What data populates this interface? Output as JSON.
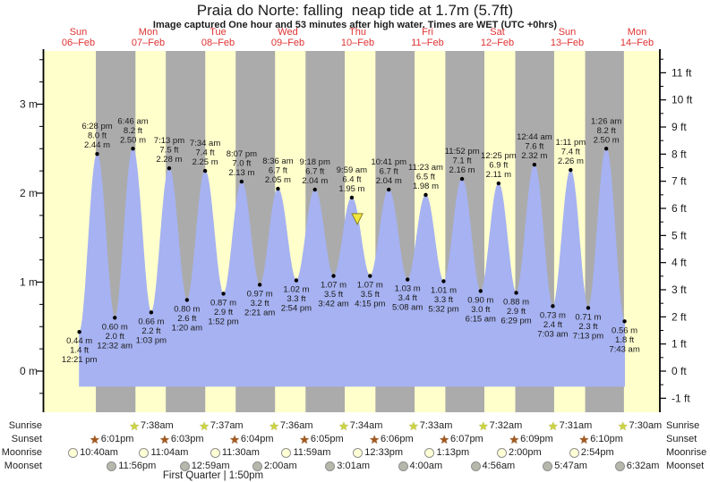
{
  "title": "Praia do Norte: falling  neap tide at 1.7m (5.7ft)",
  "subtitle": "Image captured One hour and 53 minutes after high water. Times are WET (UTC +0hrs)",
  "days": [
    {
      "name": "Sun",
      "date": "06–Feb"
    },
    {
      "name": "Mon",
      "date": "07–Feb"
    },
    {
      "name": "Tue",
      "date": "08–Feb"
    },
    {
      "name": "Wed",
      "date": "09–Feb"
    },
    {
      "name": "Thu",
      "date": "10–Feb"
    },
    {
      "name": "Fri",
      "date": "11–Feb"
    },
    {
      "name": "Sat",
      "date": "12–Feb"
    },
    {
      "name": "Sun",
      "date": "13–Feb"
    },
    {
      "name": "Mon",
      "date": "14–Feb"
    }
  ],
  "axis_left_labels": [
    "3 m",
    "2 m",
    "1 m",
    "0 m"
  ],
  "axis_right_labels": [
    "11 ft",
    "10 ft",
    "9 ft",
    "8 ft",
    "7 ft",
    "6 ft",
    "5 ft",
    "4 ft",
    "3 ft",
    "2 ft",
    "1 ft",
    "0 ft",
    "-1 ft"
  ],
  "colors": {
    "day_band": "#ffffcc",
    "night_band": "#ababab",
    "tide_fill": "#a6b2f1",
    "day_label_red": "#e03232",
    "marker_yellow": "#f2e73c",
    "marker_outline": "#8a8423",
    "sunrise_star": "#ccd43e",
    "sunset_star": "#a2591f",
    "moonrise_fill": "#ffffd6",
    "moonset_fill": "#b5b8ab"
  },
  "astro": {
    "rows": [
      {
        "label": "Sunrise",
        "type": "sunrise",
        "icon": "sunrise-star-icon",
        "events": [
          {
            "time": "7:38am",
            "t": 31.633
          },
          {
            "time": "7:37am",
            "t": 55.617
          },
          {
            "time": "7:36am",
            "t": 79.6
          },
          {
            "time": "7:34am",
            "t": 103.567
          },
          {
            "time": "7:33am",
            "t": 127.55
          },
          {
            "time": "7:32am",
            "t": 151.533
          },
          {
            "time": "7:31am",
            "t": 175.517
          },
          {
            "time": "7:30am",
            "t": 199.5
          }
        ]
      },
      {
        "label": "Sunset",
        "type": "sunset",
        "icon": "sunset-star-icon",
        "events": [
          {
            "time": "6:01pm",
            "t": 18.017
          },
          {
            "time": "6:03pm",
            "t": 42.05
          },
          {
            "time": "6:04pm",
            "t": 66.067
          },
          {
            "time": "6:05pm",
            "t": 90.083
          },
          {
            "time": "6:06pm",
            "t": 114.1
          },
          {
            "time": "6:07pm",
            "t": 138.117
          },
          {
            "time": "6:09pm",
            "t": 162.15
          },
          {
            "time": "6:10pm",
            "t": 186.167
          }
        ]
      },
      {
        "label": "Moonrise",
        "type": "moonrise",
        "icon": "moonrise-circle-icon",
        "events": [
          {
            "time": "10:40am",
            "t": 10.667
          },
          {
            "time": "11:04am",
            "t": 35.067
          },
          {
            "time": "11:30am",
            "t": 59.5
          },
          {
            "time": "11:59am",
            "t": 83.983
          },
          {
            "time": "12:33pm",
            "t": 108.55
          },
          {
            "time": "1:13pm",
            "t": 133.217
          },
          {
            "time": "2:00pm",
            "t": 158.0
          },
          {
            "time": "2:54pm",
            "t": 182.9
          }
        ]
      },
      {
        "label": "Moonset",
        "type": "moonset",
        "icon": "moonset-circle-icon",
        "events": [
          {
            "time": "11:56pm",
            "t": 23.933
          },
          {
            "time": "12:59am",
            "t": 48.983
          },
          {
            "time": "2:00am",
            "t": 74.0
          },
          {
            "time": "3:01am",
            "t": 99.017
          },
          {
            "time": "4:00am",
            "t": 124.0
          },
          {
            "time": "4:56am",
            "t": 148.933
          },
          {
            "time": "5:47am",
            "t": 173.783
          },
          {
            "time": "6:32am",
            "t": 198.533
          }
        ]
      }
    ],
    "phase_note": "First Quarter | 1:50pm"
  },
  "chart_data": {
    "type": "area",
    "title": "Praia do Norte tide heights 06-Feb to 14-Feb",
    "x_unit": "hours since 00:00 Sun 06-Feb",
    "y_unit_left": "m",
    "y_unit_right": "ft",
    "ylim_m": [
      -0.45,
      3.6
    ],
    "grid": false,
    "extremes": [
      {
        "kind": "low",
        "time": "12:21 pm",
        "t": 12.35,
        "m": 0.44,
        "ft": 1.4
      },
      {
        "kind": "high",
        "time": "6:28 pm",
        "t": 18.467,
        "m": 2.44,
        "ft": 8.0
      },
      {
        "kind": "low",
        "time": "12:32 am",
        "t": 24.533,
        "m": 0.6,
        "ft": 2.0
      },
      {
        "kind": "high",
        "time": "6:46 am",
        "t": 30.767,
        "m": 2.5,
        "ft": 8.2
      },
      {
        "kind": "low",
        "time": "1:03 pm",
        "t": 37.05,
        "m": 0.66,
        "ft": 2.2
      },
      {
        "kind": "high",
        "time": "7:13 pm",
        "t": 43.217,
        "m": 2.28,
        "ft": 7.5
      },
      {
        "kind": "low",
        "time": "1:20 am",
        "t": 49.333,
        "m": 0.8,
        "ft": 2.6
      },
      {
        "kind": "high",
        "time": "7:34 am",
        "t": 55.567,
        "m": 2.25,
        "ft": 7.4
      },
      {
        "kind": "low",
        "time": "1:52 pm",
        "t": 61.867,
        "m": 0.87,
        "ft": 2.9
      },
      {
        "kind": "high",
        "time": "8:07 pm",
        "t": 68.117,
        "m": 2.13,
        "ft": 7.0
      },
      {
        "kind": "low",
        "time": "2:21 am",
        "t": 74.35,
        "m": 0.97,
        "ft": 3.2
      },
      {
        "kind": "high",
        "time": "8:36 am",
        "t": 80.6,
        "m": 2.05,
        "ft": 6.7
      },
      {
        "kind": "low",
        "time": "2:54 pm",
        "t": 86.9,
        "m": 1.02,
        "ft": 3.3
      },
      {
        "kind": "high",
        "time": "9:18 pm",
        "t": 93.3,
        "m": 2.04,
        "ft": 6.7
      },
      {
        "kind": "low",
        "time": "3:42 am",
        "t": 99.7,
        "m": 1.07,
        "ft": 3.5
      },
      {
        "kind": "high",
        "time": "9:59 am",
        "t": 105.983,
        "m": 1.95,
        "ft": 6.4
      },
      {
        "kind": "low",
        "time": "4:15 pm",
        "t": 112.25,
        "m": 1.07,
        "ft": 3.5
      },
      {
        "kind": "high",
        "time": "10:41 pm",
        "t": 118.683,
        "m": 2.04,
        "ft": 6.7
      },
      {
        "kind": "low",
        "time": "5:08 am",
        "t": 125.133,
        "m": 1.03,
        "ft": 3.4
      },
      {
        "kind": "high",
        "time": "11:23 am",
        "t": 131.383,
        "m": 1.98,
        "ft": 6.5
      },
      {
        "kind": "low",
        "time": "5:32 pm",
        "t": 137.533,
        "m": 1.01,
        "ft": 3.3
      },
      {
        "kind": "high",
        "time": "11:52 pm",
        "t": 143.867,
        "m": 2.16,
        "ft": 7.1
      },
      {
        "kind": "low",
        "time": "6:15 am",
        "t": 150.25,
        "m": 0.9,
        "ft": 3.0
      },
      {
        "kind": "high",
        "time": "12:25 pm",
        "t": 156.417,
        "m": 2.11,
        "ft": 6.9
      },
      {
        "kind": "low",
        "time": "6:29 pm",
        "t": 162.483,
        "m": 0.88,
        "ft": 2.9
      },
      {
        "kind": "high",
        "time": "12:44 am",
        "t": 168.733,
        "m": 2.32,
        "ft": 7.6
      },
      {
        "kind": "low",
        "time": "7:03 am",
        "t": 175.05,
        "m": 0.73,
        "ft": 2.4
      },
      {
        "kind": "high",
        "time": "1:11 pm",
        "t": 181.183,
        "m": 2.26,
        "ft": 7.4
      },
      {
        "kind": "low",
        "time": "7:13 pm",
        "t": 187.217,
        "m": 0.71,
        "ft": 2.3
      },
      {
        "kind": "high",
        "time": "1:26 am",
        "t": 193.433,
        "m": 2.5,
        "ft": 8.2
      },
      {
        "kind": "low",
        "time": "7:43 am",
        "t": 199.717,
        "m": 0.56,
        "ft": 1.8
      }
    ],
    "current": {
      "t": 107.867,
      "m": 1.7,
      "note": "falling neap tide at 1.7m (5.7ft)"
    }
  }
}
